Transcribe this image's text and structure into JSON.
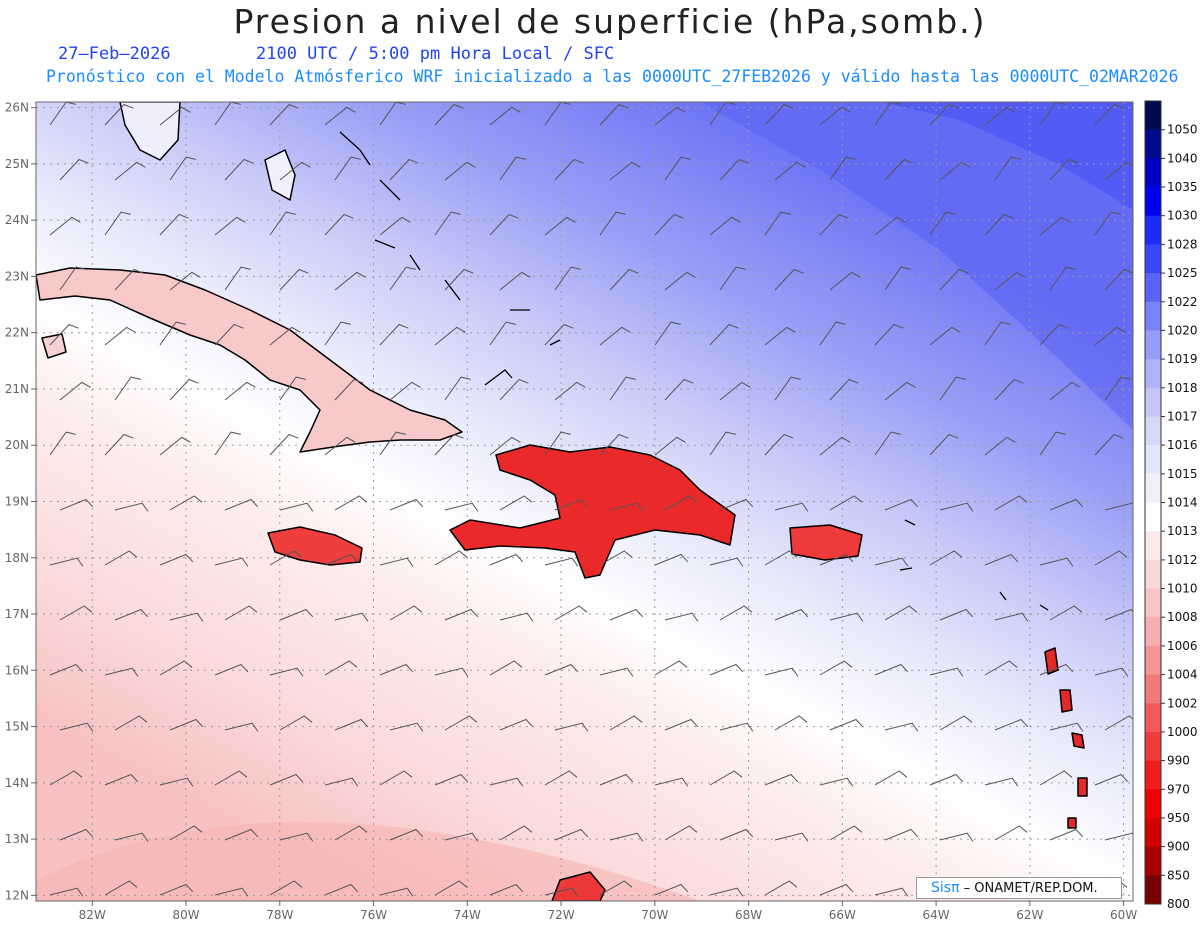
{
  "header": {
    "title": "Presion a nivel de superficie (hPa,somb.)",
    "date": "27–Feb–2026",
    "time_info": "2100 UTC / 5:00 pm Hora Local / SFC",
    "model_info": "Pronóstico con el Modelo Atmósferico WRF inicializado a las 0000UTC_27FEB2026 y válido hasta las  0000UTC_02MAR2026"
  },
  "map": {
    "lon_range": [
      -83.2,
      -59.8
    ],
    "lat_range": [
      11.9,
      26.1
    ],
    "lon_ticks": [
      {
        "value": -82,
        "label": "82W"
      },
      {
        "value": -80,
        "label": "80W"
      },
      {
        "value": -78,
        "label": "78W"
      },
      {
        "value": -76,
        "label": "76W"
      },
      {
        "value": -74,
        "label": "74W"
      },
      {
        "value": -72,
        "label": "72W"
      },
      {
        "value": -70,
        "label": "70W"
      },
      {
        "value": -68,
        "label": "68W"
      },
      {
        "value": -66,
        "label": "66W"
      },
      {
        "value": -64,
        "label": "64W"
      },
      {
        "value": -62,
        "label": "62W"
      },
      {
        "value": -60,
        "label": "60W"
      }
    ],
    "lat_ticks": [
      {
        "value": 12,
        "label": "12N"
      },
      {
        "value": 13,
        "label": "13N"
      },
      {
        "value": 14,
        "label": "14N"
      },
      {
        "value": 15,
        "label": "15N"
      },
      {
        "value": 16,
        "label": "16N"
      },
      {
        "value": 17,
        "label": "17N"
      },
      {
        "value": 18,
        "label": "18N"
      },
      {
        "value": 19,
        "label": "19N"
      },
      {
        "value": 20,
        "label": "20N"
      },
      {
        "value": 21,
        "label": "21N"
      },
      {
        "value": 22,
        "label": "22N"
      },
      {
        "value": 23,
        "label": "23N"
      },
      {
        "value": 24,
        "label": "24N"
      },
      {
        "value": 25,
        "label": "25N"
      },
      {
        "value": 26,
        "label": "26N"
      }
    ],
    "grid": "dotted",
    "field": "sea level pressure, shaded",
    "overlay": "wind barbs"
  },
  "colorbar": {
    "position": "right",
    "levels": [
      {
        "label": "1050",
        "color": "#000a50"
      },
      {
        "label": "1040",
        "color": "#000a8c"
      },
      {
        "label": "1035",
        "color": "#0000c8"
      },
      {
        "label": "1030",
        "color": "#0000f0"
      },
      {
        "label": "1028",
        "color": "#1e2cfa"
      },
      {
        "label": "1025",
        "color": "#3848fa"
      },
      {
        "label": "1022",
        "color": "#5a64fa"
      },
      {
        "label": "1020",
        "color": "#7a82fa"
      },
      {
        "label": "1019",
        "color": "#969cfa"
      },
      {
        "label": "1018",
        "color": "#aeb2fa"
      },
      {
        "label": "1017",
        "color": "#c4c6fa"
      },
      {
        "label": "1016",
        "color": "#d6d8fa"
      },
      {
        "label": "1015",
        "color": "#e4e6fb"
      },
      {
        "label": "1014",
        "color": "#f0f0fc"
      },
      {
        "label": "1013",
        "color": "#ffffff"
      },
      {
        "label": "1012",
        "color": "#fde9e9"
      },
      {
        "label": "1010",
        "color": "#fbd8d8"
      },
      {
        "label": "1008",
        "color": "#f9c4c4"
      },
      {
        "label": "1006",
        "color": "#f7aeae"
      },
      {
        "label": "1004",
        "color": "#f59494"
      },
      {
        "label": "1002",
        "color": "#f37a7a"
      },
      {
        "label": "1000",
        "color": "#f15a5a"
      },
      {
        "label": "990",
        "color": "#ef3c3c"
      },
      {
        "label": "970",
        "color": "#ee1e1e"
      },
      {
        "label": "950",
        "color": "#f00000"
      },
      {
        "label": "900",
        "color": "#d40000"
      },
      {
        "label": "850",
        "color": "#a80000"
      },
      {
        "label": "800",
        "color": "#780000"
      }
    ]
  },
  "credit": {
    "logo": "Sisπ",
    "text": "– ONAMET/REP.DOM."
  }
}
